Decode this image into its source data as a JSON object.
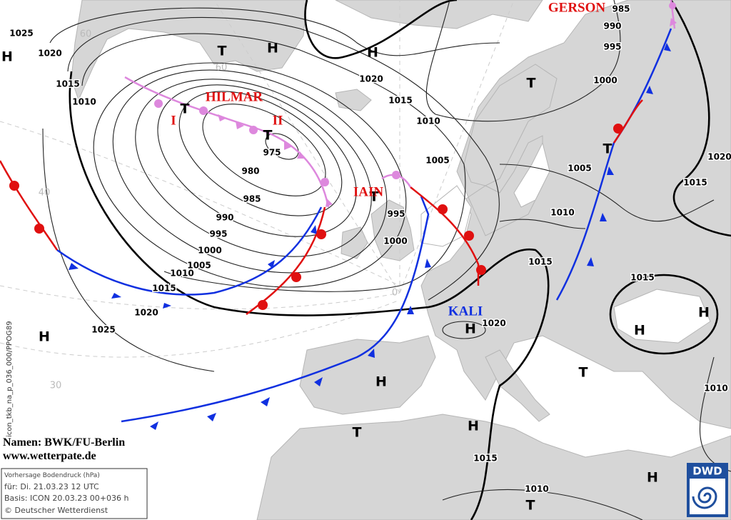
{
  "map": {
    "isobar_labels": [
      "1025",
      "1020",
      "1015",
      "1010",
      "975",
      "980",
      "985",
      "990",
      "995",
      "1000",
      "1005",
      "1010",
      "1015",
      "1020",
      "1025",
      "1020",
      "1015",
      "1010",
      "1005",
      "995",
      "1000",
      "985",
      "990",
      "995",
      "1000",
      "1005",
      "1010",
      "1015",
      "1020",
      "1015",
      "1020",
      "1015",
      "1010",
      "1015",
      "1010"
    ],
    "latitude_labels": [
      "60",
      "60",
      "40",
      "30",
      "0"
    ],
    "pressure_centers": [
      "H",
      "T",
      "H",
      "H",
      "T",
      "T",
      "T",
      "T",
      "T",
      "H",
      "H",
      "H",
      "H",
      "T",
      "H",
      "T",
      "H",
      "H",
      "T"
    ],
    "storm_names": [
      "GERSON",
      "HILMAR",
      "I",
      "II",
      "IAIN",
      "KALI"
    ],
    "side_text": "icon_tkb_na_p_036_000/PPOG89",
    "credits": [
      "Namen: BWK/FU-Berlin",
      "www.wetterpate.de"
    ],
    "info_box": [
      "Vorhersage Bodendruck (hPa)",
      "für:  Di. 21.03.23  12 UTC",
      "Basis: ICON  20.03.23 00+036 h",
      "© Deutscher Wetterdienst"
    ],
    "logo": "DWD"
  }
}
